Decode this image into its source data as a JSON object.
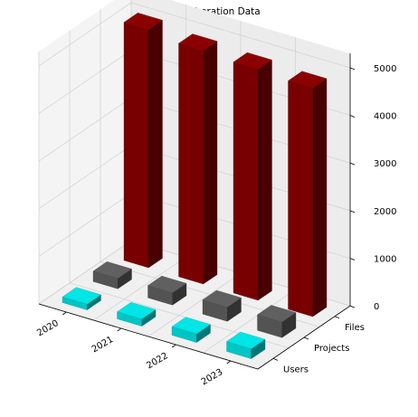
{
  "chart_data": {
    "type": "bar",
    "title": "Team Collaboration Data",
    "categories": [
      "2020",
      "2021",
      "2022",
      "2023"
    ],
    "depth_categories": [
      "Users",
      "Projects",
      "Files"
    ],
    "series": [
      {
        "name": "Users",
        "values": [
          120,
          150,
          180,
          210
        ],
        "color": "#00e5e5"
      },
      {
        "name": "Projects",
        "values": [
          220,
          260,
          300,
          330
        ],
        "color": "#606060"
      },
      {
        "name": "Files",
        "values": [
          5000,
          4900,
          4850,
          4800
        ],
        "color": "#8b0000"
      }
    ],
    "zticks": [
      "0",
      "1000",
      "2000",
      "3000",
      "4000",
      "5000"
    ],
    "zlim": [
      0,
      5300
    ],
    "grid": true
  }
}
